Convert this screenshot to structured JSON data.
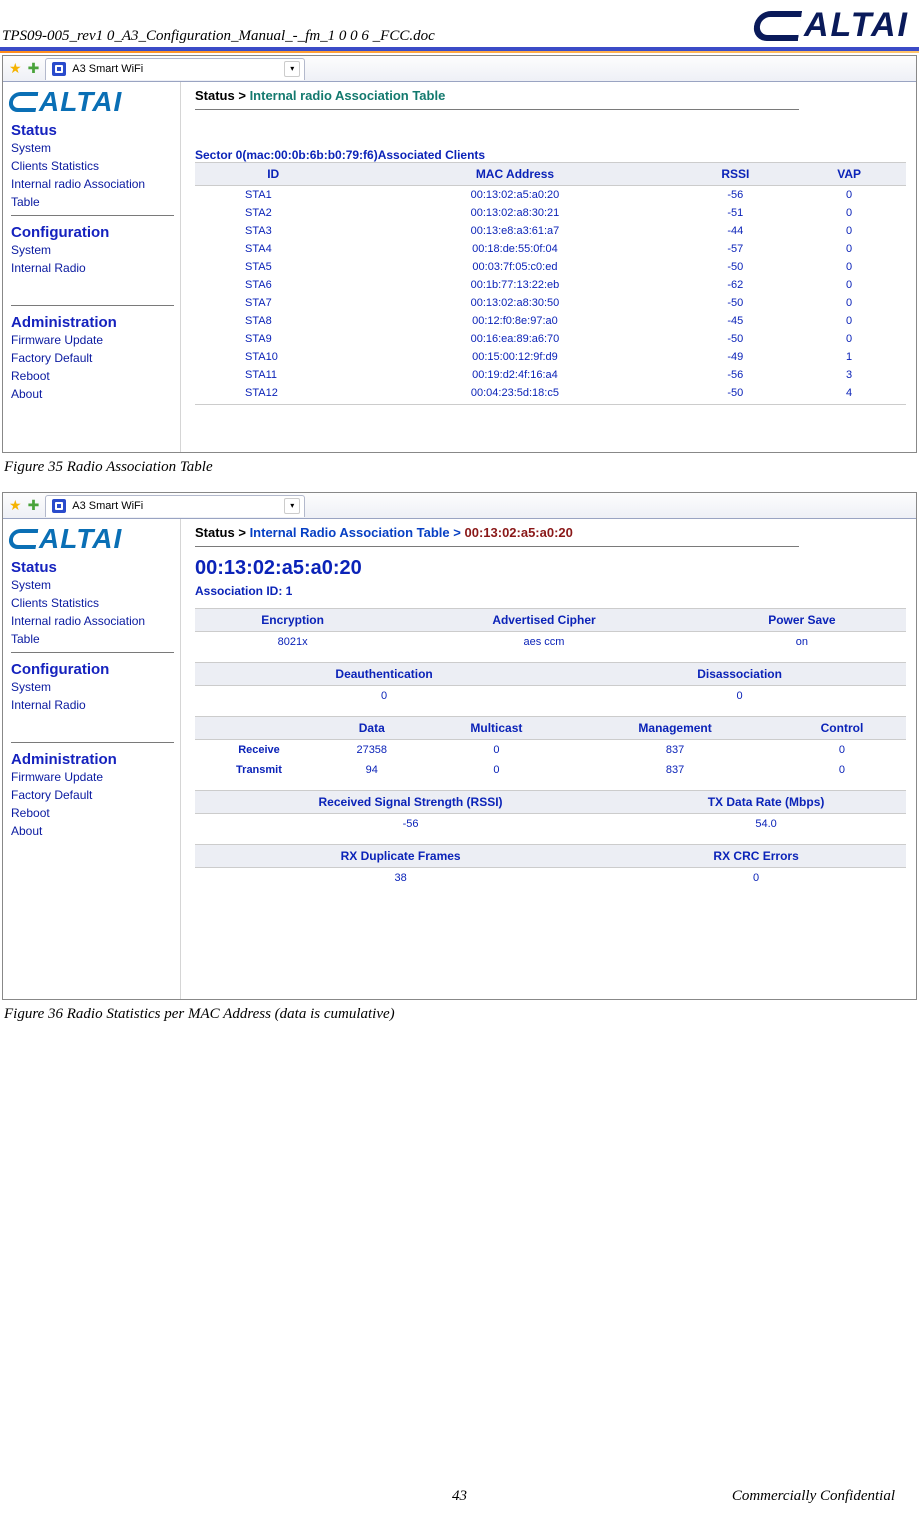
{
  "doc": {
    "header_title": "TPS09-005_rev1 0_A3_Configuration_Manual_-_fm_1 0 0 6 _FCC.doc",
    "brand": "ALTAI",
    "page_number": "43",
    "confidential": "Commercially Confidential"
  },
  "fig35": {
    "tab_label": "A3 Smart WiFi",
    "breadcrumb_status": "Status >",
    "breadcrumb_page": "Internal radio Association Table",
    "sector_caption": "Sector 0(mac:00:0b:6b:b0:79:f6)Associated Clients",
    "columns": [
      "ID",
      "MAC Address",
      "RSSI",
      "VAP"
    ],
    "rows": [
      [
        "STA1",
        "00:13:02:a5:a0:20",
        "-56",
        "0"
      ],
      [
        "STA2",
        "00:13:02:a8:30:21",
        "-51",
        "0"
      ],
      [
        "STA3",
        "00:13:e8:a3:61:a7",
        "-44",
        "0"
      ],
      [
        "STA4",
        "00:18:de:55:0f:04",
        "-57",
        "0"
      ],
      [
        "STA5",
        "00:03:7f:05:c0:ed",
        "-50",
        "0"
      ],
      [
        "STA6",
        "00:1b:77:13:22:eb",
        "-62",
        "0"
      ],
      [
        "STA7",
        "00:13:02:a8:30:50",
        "-50",
        "0"
      ],
      [
        "STA8",
        "00:12:f0:8e:97:a0",
        "-45",
        "0"
      ],
      [
        "STA9",
        "00:16:ea:89:a6:70",
        "-50",
        "0"
      ],
      [
        "STA10",
        "00:15:00:12:9f:d9",
        "-49",
        "1"
      ],
      [
        "STA11",
        "00:19:d2:4f:16:a4",
        "-56",
        "3"
      ],
      [
        "STA12",
        "00:04:23:5d:18:c5",
        "-50",
        "4"
      ]
    ],
    "caption": "Figure 35     Radio Association Table"
  },
  "fig36": {
    "tab_label": "A3 Smart WiFi",
    "breadcrumb_status": "Status >",
    "breadcrumb_mid": "Internal Radio Association Table >",
    "breadcrumb_mac": "00:13:02:a5:a0:20",
    "mac_heading": "00:13:02:a5:a0:20",
    "assoc_id": "Association ID: 1",
    "t1_headers": [
      "Encryption",
      "Advertised Cipher",
      "Power Save"
    ],
    "t1_row": [
      "8021x",
      "aes ccm",
      "on"
    ],
    "t2_headers": [
      "Deauthentication",
      "Disassociation"
    ],
    "t2_row": [
      "0",
      "0"
    ],
    "t3_corner": "",
    "t3_headers": [
      "Data",
      "Multicast",
      "Management",
      "Control"
    ],
    "t3_rows": [
      [
        "Receive",
        "27358",
        "0",
        "837",
        "0"
      ],
      [
        "Transmit",
        "94",
        "0",
        "837",
        "0"
      ]
    ],
    "t4_headers": [
      "Received Signal Strength (RSSI)",
      "TX Data Rate (Mbps)"
    ],
    "t4_row": [
      "-56",
      "54.0"
    ],
    "t5_headers": [
      "RX Duplicate Frames",
      "RX CRC Errors"
    ],
    "t5_row": [
      "38",
      "0"
    ],
    "caption": "Figure 36     Radio Statistics per MAC Address (data is cumulative)"
  },
  "nav": {
    "status_title": "Status",
    "status_links": [
      "System",
      "Clients Statistics",
      "Internal radio Association Table"
    ],
    "config_title": "Configuration",
    "config_links": [
      "System",
      "Internal Radio"
    ],
    "admin_title": "Administration",
    "admin_links": [
      "Firmware Update",
      "Factory Default",
      "Reboot",
      "About"
    ]
  }
}
